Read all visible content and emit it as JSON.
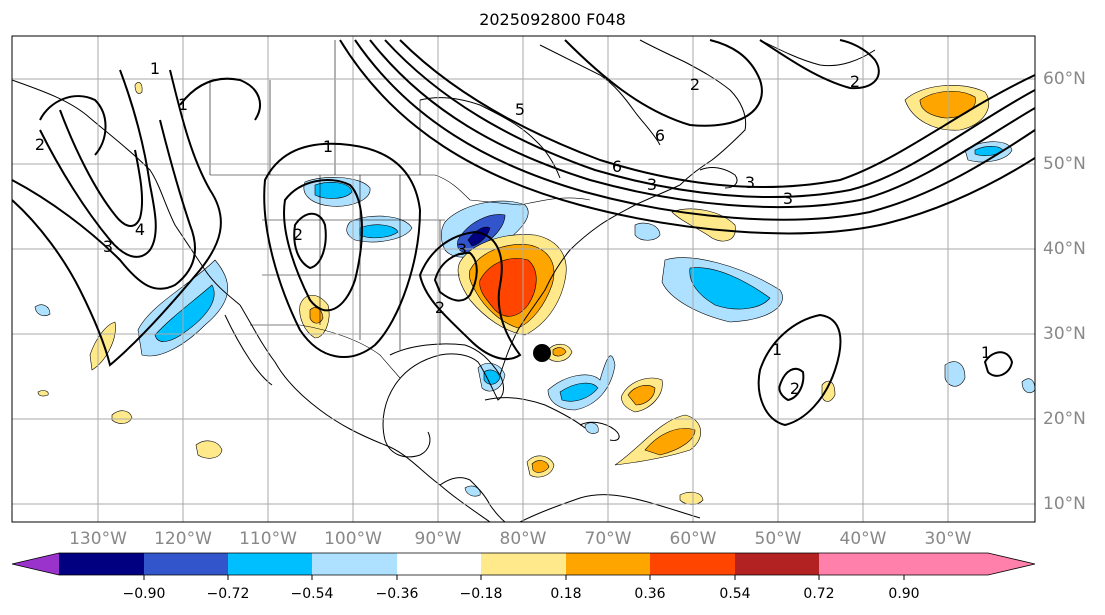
{
  "title": "2025092800 F048",
  "map": {
    "projection": "plate-carree",
    "lon_range": [
      -140,
      -20
    ],
    "lat_range": [
      7,
      65
    ],
    "lon_labels": [
      "130°W",
      "120°W",
      "110°W",
      "100°W",
      "90°W",
      "80°W",
      "70°W",
      "60°W",
      "50°W",
      "40°W",
      "30°W"
    ],
    "lat_labels": [
      "60°N",
      "50°N",
      "40°N",
      "30°N",
      "20°N",
      "10°N"
    ],
    "gridlines": true,
    "grid_color": "#aaaaaa",
    "marker": {
      "lon": -77.5,
      "lat": 28,
      "name": "storm-center-marker"
    }
  },
  "contour_labels": [
    "1",
    "2",
    "3",
    "4",
    "5",
    "6",
    "1",
    "2",
    "3",
    "3",
    "2",
    "1",
    "2",
    "1",
    "2",
    "3",
    "6",
    "1",
    "2",
    "3"
  ],
  "colorbar": {
    "colors": [
      "#9933cc",
      "#000080",
      "#3355cc",
      "#00bfff",
      "#aee0ff",
      "#ffffff",
      "#ffe98a",
      "#ffa500",
      "#ff4500",
      "#b22222",
      "#ff80aa"
    ],
    "tick_labels": [
      "−0.90",
      "−0.72",
      "−0.54",
      "−0.36",
      "−0.18",
      "0.18",
      "0.36",
      "0.54",
      "0.72",
      "0.90"
    ],
    "extend": "both"
  }
}
